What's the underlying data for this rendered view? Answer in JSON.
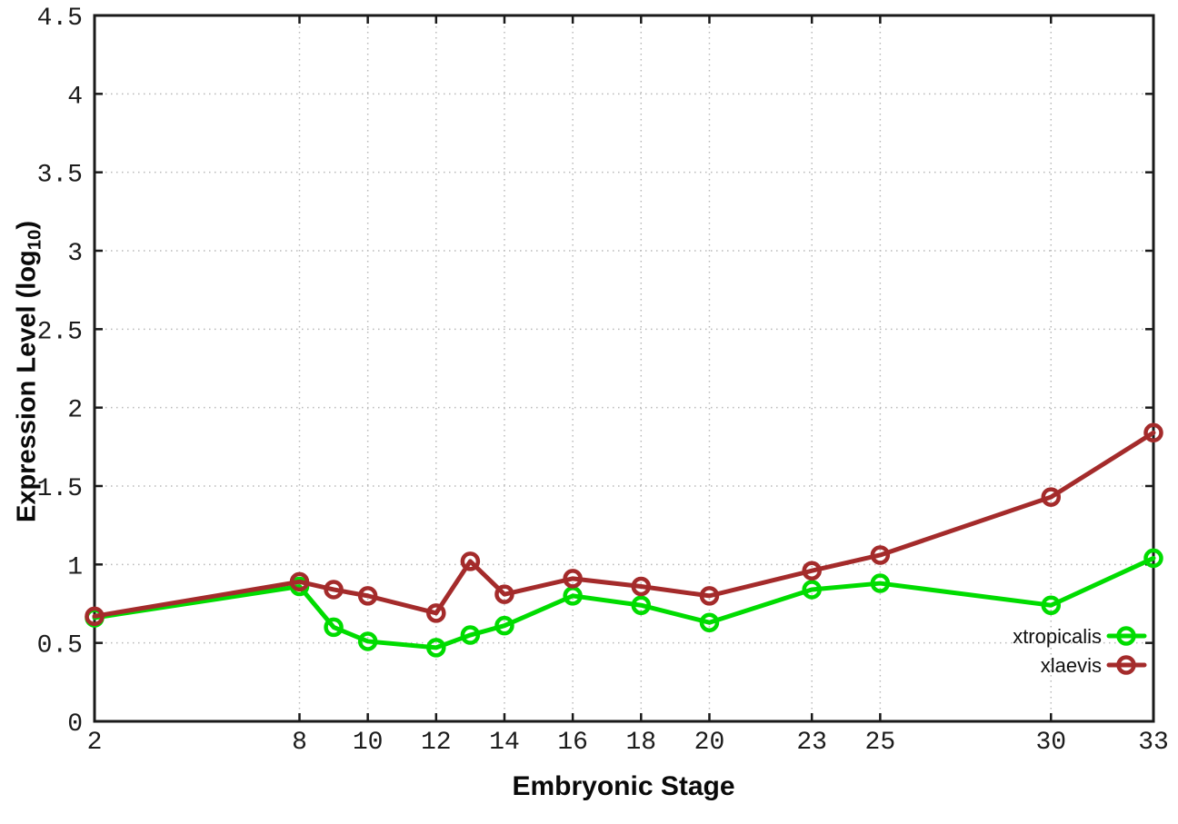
{
  "chart_data": {
    "type": "line",
    "title": "",
    "xlabel": "Embryonic Stage",
    "ylabel": "Expression Level (log10)",
    "ylabel_parts": {
      "prefix": "Expression Level (log",
      "subscript": "10",
      "suffix": ")"
    },
    "xlim": [
      2,
      33
    ],
    "ylim": [
      0,
      4.5
    ],
    "x_ticks": [
      2,
      8,
      10,
      12,
      14,
      16,
      18,
      20,
      23,
      25,
      30,
      33
    ],
    "y_ticks": [
      0,
      0.5,
      1,
      1.5,
      2,
      2.5,
      3,
      3.5,
      4,
      4.5
    ],
    "grid": true,
    "grid_style": "dotted",
    "legend_position": "inside-bottom-right",
    "marker": "open-circle",
    "x": [
      2,
      8,
      9,
      10,
      12,
      13,
      14,
      16,
      18,
      20,
      23,
      25,
      30,
      33
    ],
    "series": [
      {
        "name": "xtropicalis",
        "color": "#00DC00",
        "values": [
          0.66,
          0.86,
          0.6,
          0.51,
          0.47,
          0.55,
          0.61,
          0.8,
          0.74,
          0.63,
          0.84,
          0.88,
          0.74,
          1.04
        ]
      },
      {
        "name": "xlaevis",
        "color": "#A42B2B",
        "values": [
          0.67,
          0.89,
          0.84,
          0.8,
          0.69,
          1.02,
          0.81,
          0.91,
          0.86,
          0.8,
          0.96,
          1.06,
          1.43,
          1.84
        ]
      }
    ]
  },
  "style": {
    "background": "#ffffff",
    "border_color": "#1a1a1a",
    "grid_color": "#b9b9b9",
    "tick_color": "#1a1a1a",
    "tick_label_color": "#1c1c1c",
    "axis_title_color": "#0a0a0a",
    "legend_text_color": "#111111"
  }
}
